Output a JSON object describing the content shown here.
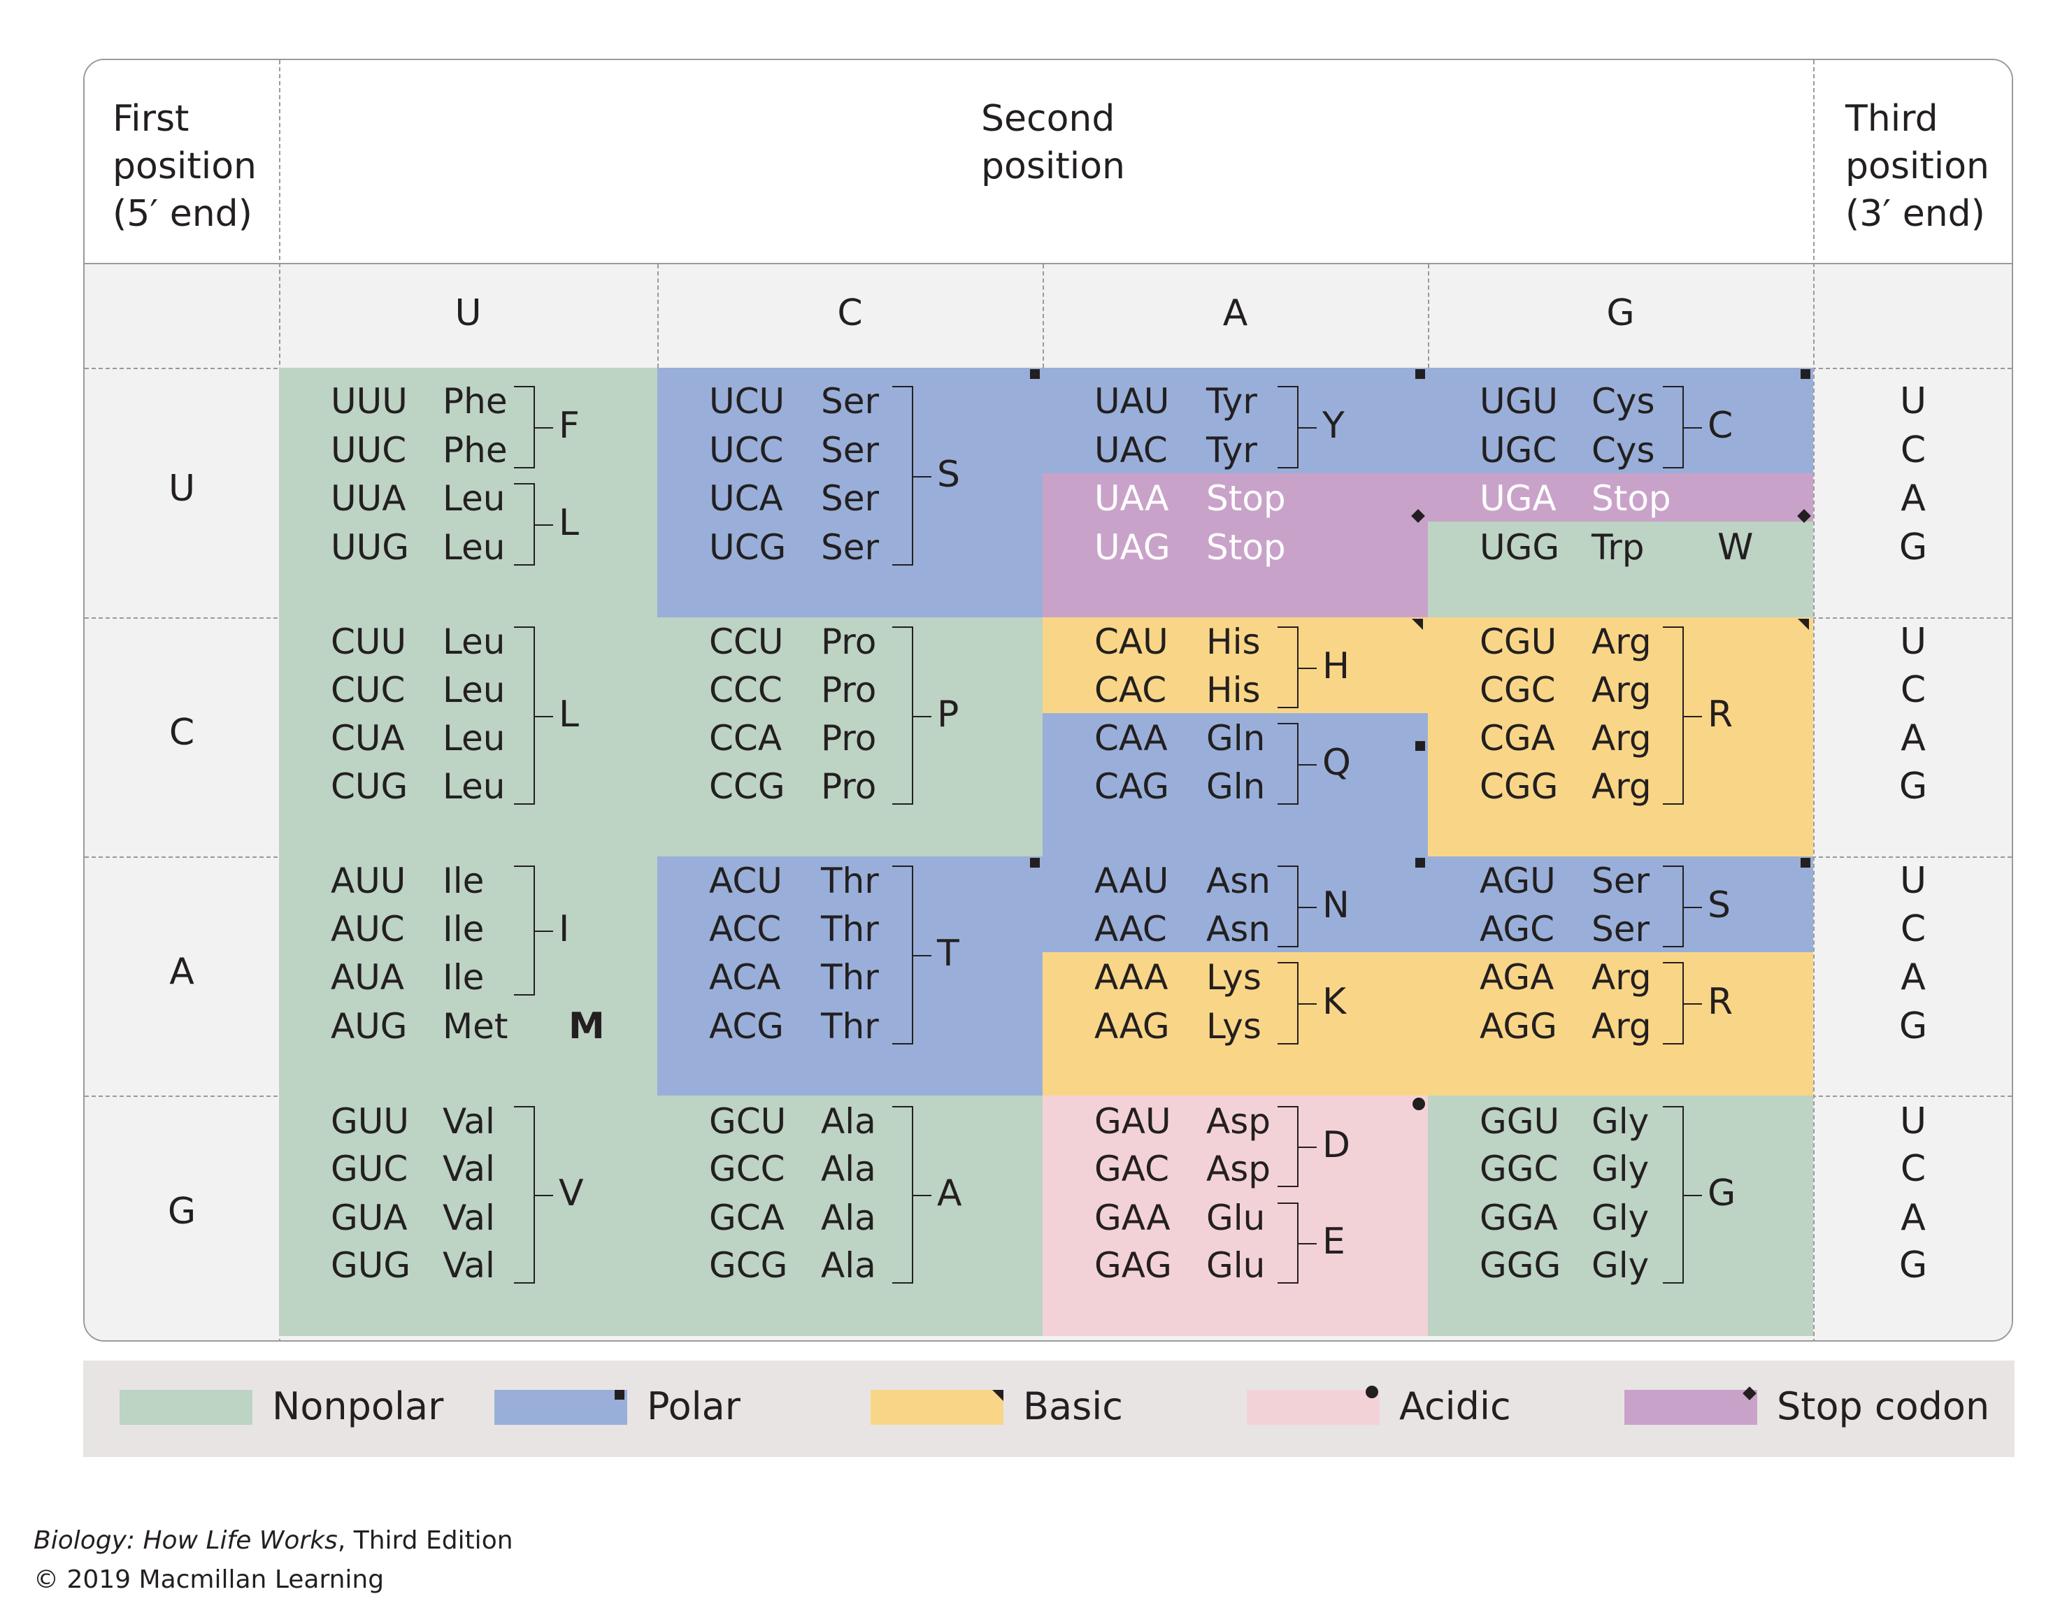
{
  "header": {
    "first_position": [
      "First",
      "position",
      "(5′ end)"
    ],
    "second_position": [
      "Second",
      "position"
    ],
    "third_position": [
      "Third",
      "position",
      "(3′ end)"
    ]
  },
  "second_letters": [
    "U",
    "C",
    "A",
    "G"
  ],
  "first_letters": [
    "U",
    "C",
    "A",
    "G"
  ],
  "third_letters": [
    "U",
    "C",
    "A",
    "G"
  ],
  "colors": {
    "nonpolar": "#bdd3c4",
    "polar": "#99afd9",
    "basic": "#f9d687",
    "acidic": "#f3d2d7",
    "stop": "#c9a2c9"
  },
  "table": [
    [
      {
        "codons": [
          "UUU",
          "UUC",
          "UUA",
          "UUG"
        ],
        "aminos": [
          "Phe",
          "Phe",
          "Leu",
          "Leu"
        ],
        "fills": [
          "nonpolar",
          "nonpolar",
          "nonpolar",
          "nonpolar"
        ],
        "groups": [
          {
            "letter": "F",
            "rows": [
              0,
              1
            ]
          },
          {
            "letter": "L",
            "rows": [
              2,
              3
            ]
          }
        ]
      },
      {
        "codons": [
          "UCU",
          "UCC",
          "UCA",
          "UCG"
        ],
        "aminos": [
          "Ser",
          "Ser",
          "Ser",
          "Ser"
        ],
        "fills": [
          "polar",
          "polar",
          "polar",
          "polar"
        ],
        "groups": [
          {
            "letter": "S",
            "rows": [
              0,
              3
            ]
          }
        ]
      },
      {
        "codons": [
          "UAU",
          "UAC",
          "UAA",
          "UAG"
        ],
        "aminos": [
          "Tyr",
          "Tyr",
          "Stop",
          "Stop"
        ],
        "fills": [
          "polar",
          "polar",
          "stop",
          "stop"
        ],
        "groups": [
          {
            "letter": "Y",
            "rows": [
              0,
              1
            ]
          }
        ]
      },
      {
        "codons": [
          "UGU",
          "UGC",
          "UGA",
          "UGG"
        ],
        "aminos": [
          "Cys",
          "Cys",
          "Stop",
          "Trp"
        ],
        "fills": [
          "polar",
          "polar",
          "stop",
          "nonpolar"
        ],
        "groups": [
          {
            "letter": "C",
            "rows": [
              0,
              1
            ]
          }
        ],
        "single": {
          "row": 3,
          "letter": "W"
        }
      }
    ],
    [
      {
        "codons": [
          "CUU",
          "CUC",
          "CUA",
          "CUG"
        ],
        "aminos": [
          "Leu",
          "Leu",
          "Leu",
          "Leu"
        ],
        "fills": [
          "nonpolar",
          "nonpolar",
          "nonpolar",
          "nonpolar"
        ],
        "groups": [
          {
            "letter": "L",
            "rows": [
              0,
              3
            ]
          }
        ]
      },
      {
        "codons": [
          "CCU",
          "CCC",
          "CCA",
          "CCG"
        ],
        "aminos": [
          "Pro",
          "Pro",
          "Pro",
          "Pro"
        ],
        "fills": [
          "nonpolar",
          "nonpolar",
          "nonpolar",
          "nonpolar"
        ],
        "groups": [
          {
            "letter": "P",
            "rows": [
              0,
              3
            ]
          }
        ]
      },
      {
        "codons": [
          "CAU",
          "CAC",
          "CAA",
          "CAG"
        ],
        "aminos": [
          "His",
          "His",
          "Gln",
          "Gln"
        ],
        "fills": [
          "basic",
          "basic",
          "polar",
          "polar"
        ],
        "groups": [
          {
            "letter": "H",
            "rows": [
              0,
              1
            ]
          },
          {
            "letter": "Q",
            "rows": [
              2,
              3
            ]
          }
        ]
      },
      {
        "codons": [
          "CGU",
          "CGC",
          "CGA",
          "CGG"
        ],
        "aminos": [
          "Arg",
          "Arg",
          "Arg",
          "Arg"
        ],
        "fills": [
          "basic",
          "basic",
          "basic",
          "basic"
        ],
        "groups": [
          {
            "letter": "R",
            "rows": [
              0,
              3
            ]
          }
        ]
      }
    ],
    [
      {
        "codons": [
          "AUU",
          "AUC",
          "AUA",
          "AUG"
        ],
        "aminos": [
          "Ile",
          "Ile",
          "Ile",
          "Met"
        ],
        "fills": [
          "nonpolar",
          "nonpolar",
          "nonpolar",
          "nonpolar"
        ],
        "groups": [
          {
            "letter": "I",
            "rows": [
              0,
              2
            ]
          }
        ],
        "single": {
          "row": 3,
          "letter": "M",
          "bold": true
        }
      },
      {
        "codons": [
          "ACU",
          "ACC",
          "ACA",
          "ACG"
        ],
        "aminos": [
          "Thr",
          "Thr",
          "Thr",
          "Thr"
        ],
        "fills": [
          "polar",
          "polar",
          "polar",
          "polar"
        ],
        "groups": [
          {
            "letter": "T",
            "rows": [
              0,
              3
            ]
          }
        ]
      },
      {
        "codons": [
          "AAU",
          "AAC",
          "AAA",
          "AAG"
        ],
        "aminos": [
          "Asn",
          "Asn",
          "Lys",
          "Lys"
        ],
        "fills": [
          "polar",
          "polar",
          "basic",
          "basic"
        ],
        "groups": [
          {
            "letter": "N",
            "rows": [
              0,
              1
            ]
          },
          {
            "letter": "K",
            "rows": [
              2,
              3
            ]
          }
        ]
      },
      {
        "codons": [
          "AGU",
          "AGC",
          "AGA",
          "AGG"
        ],
        "aminos": [
          "Ser",
          "Ser",
          "Arg",
          "Arg"
        ],
        "fills": [
          "polar",
          "polar",
          "basic",
          "basic"
        ],
        "groups": [
          {
            "letter": "S",
            "rows": [
              0,
              1
            ]
          },
          {
            "letter": "R",
            "rows": [
              2,
              3
            ]
          }
        ]
      }
    ],
    [
      {
        "codons": [
          "GUU",
          "GUC",
          "GUA",
          "GUG"
        ],
        "aminos": [
          "Val",
          "Val",
          "Val",
          "Val"
        ],
        "fills": [
          "nonpolar",
          "nonpolar",
          "nonpolar",
          "nonpolar"
        ],
        "groups": [
          {
            "letter": "V",
            "rows": [
              0,
              3
            ]
          }
        ]
      },
      {
        "codons": [
          "GCU",
          "GCC",
          "GCA",
          "GCG"
        ],
        "aminos": [
          "Ala",
          "Ala",
          "Ala",
          "Ala"
        ],
        "fills": [
          "nonpolar",
          "nonpolar",
          "nonpolar",
          "nonpolar"
        ],
        "groups": [
          {
            "letter": "A",
            "rows": [
              0,
              3
            ]
          }
        ]
      },
      {
        "codons": [
          "GAU",
          "GAC",
          "GAA",
          "GAG"
        ],
        "aminos": [
          "Asp",
          "Asp",
          "Glu",
          "Glu"
        ],
        "fills": [
          "acidic",
          "acidic",
          "acidic",
          "acidic"
        ],
        "groups": [
          {
            "letter": "D",
            "rows": [
              0,
              1
            ]
          },
          {
            "letter": "E",
            "rows": [
              2,
              3
            ]
          }
        ]
      },
      {
        "codons": [
          "GGU",
          "GGC",
          "GGA",
          "GGG"
        ],
        "aminos": [
          "Gly",
          "Gly",
          "Gly",
          "Gly"
        ],
        "fills": [
          "nonpolar",
          "nonpolar",
          "nonpolar",
          "nonpolar"
        ],
        "groups": [
          {
            "letter": "G",
            "rows": [
              0,
              3
            ]
          }
        ]
      }
    ]
  ],
  "legend": [
    {
      "key": "nonpolar",
      "label": "Nonpolar",
      "marker": "none"
    },
    {
      "key": "polar",
      "label": "Polar",
      "marker": "square"
    },
    {
      "key": "basic",
      "label": "Basic",
      "marker": "triangle"
    },
    {
      "key": "acidic",
      "label": "Acidic",
      "marker": "circle"
    },
    {
      "key": "stop",
      "label": "Stop codon",
      "marker": "diamond"
    }
  ],
  "credit": {
    "title": "Biology: How Life Works",
    "edition": ", Third Edition",
    "copyright": "© 2019 Macmillan Learning"
  }
}
